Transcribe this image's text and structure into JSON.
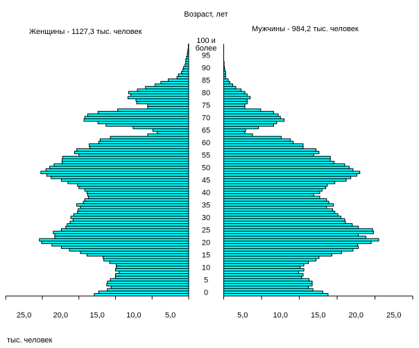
{
  "chart_data": {
    "type": "bar",
    "subtype": "population-pyramid",
    "title": "Возраст, лет",
    "unit_label": "тыс. человек",
    "bar_color": "#00FFFF",
    "left_series": {
      "name": "Женщины",
      "label": "Женщины - 1127,3 тыс. человек",
      "values": [
        12.9,
        12.3,
        11.1,
        10.6,
        11.2,
        11.1,
        10.7,
        10.0,
        10.0,
        9.5,
        10.0,
        9.9,
        9.9,
        10.8,
        11.6,
        11.7,
        13.9,
        14.8,
        16.3,
        17.4,
        18.7,
        20.1,
        20.4,
        18.3,
        18.3,
        18.5,
        17.4,
        16.8,
        16.6,
        16.2,
        15.8,
        16.1,
        15.7,
        15.2,
        15.1,
        14.8,
        15.3,
        14.4,
        14.2,
        13.7,
        13.8,
        13.9,
        14.2,
        15.0,
        15.2,
        16.5,
        17.4,
        18.8,
        19.4,
        20.2,
        19.5,
        19.0,
        18.4,
        17.3,
        17.3,
        17.2,
        15.0,
        15.6,
        15.3,
        13.5,
        13.6,
        12.3,
        12.1,
        10.7,
        5.6,
        4.3,
        4.9,
        7.6,
        11.3,
        12.4,
        14.3,
        14.2,
        13.8,
        12.4,
        9.7,
        5.6,
        5.6,
        7.1,
        7.2,
        8.3,
        7.9,
        8.2,
        7.0,
        5.9,
        4.6,
        3.8,
        2.8,
        1.6,
        1.4,
        1.0,
        0.8,
        0.7,
        0.5,
        0.4,
        0.4,
        0.3,
        0.2,
        0.15,
        0.1,
        0.05,
        0.05
      ]
    },
    "right_series": {
      "name": "Мужчины",
      "label": "Мужчины - 984,2 тыс. человек",
      "values": [
        13.8,
        13.1,
        11.8,
        11.2,
        11.7,
        11.7,
        11.3,
        10.3,
        10.5,
        9.9,
        10.6,
        10.1,
        10.6,
        11.2,
        12.2,
        12.6,
        14.3,
        15.6,
        17.1,
        17.8,
        17.7,
        19.5,
        20.5,
        18.8,
        17.8,
        19.8,
        19.7,
        17.8,
        17.0,
        16.1,
        16.0,
        15.5,
        15.1,
        14.7,
        14.4,
        13.6,
        14.5,
        13.9,
        13.6,
        12.7,
        11.9,
        12.7,
        13.0,
        13.5,
        13.7,
        14.7,
        16.2,
        16.8,
        17.6,
        18.0,
        17.1,
        16.6,
        16.0,
        14.6,
        14.1,
        14.1,
        11.9,
        12.6,
        12.2,
        10.5,
        10.5,
        9.2,
        8.8,
        7.6,
        3.8,
        2.8,
        2.9,
        4.6,
        6.6,
        7.0,
        8.0,
        7.5,
        7.2,
        6.6,
        4.9,
        2.8,
        2.8,
        3.1,
        3.1,
        3.5,
        3.1,
        2.8,
        2.3,
        1.6,
        1.2,
        0.8,
        0.6,
        0.25,
        0.25,
        0.25,
        0.15,
        0.1,
        0.05,
        0.05,
        0,
        0,
        0,
        0,
        0,
        0,
        0
      ]
    },
    "ages": {
      "min": 0,
      "max": 100
    },
    "age_labels": [
      "0",
      "5",
      "10",
      "15",
      "20",
      "25",
      "30",
      "35",
      "40",
      "45",
      "50",
      "55",
      "60",
      "65",
      "70",
      "75",
      "80",
      "85",
      "90",
      "95"
    ],
    "age_label_top": [
      "100 и",
      "более"
    ],
    "x_range": [
      0,
      25
    ],
    "x_ticks": [
      5,
      10,
      15,
      20,
      25
    ],
    "x_tick_labels": [
      "5,0",
      "10,0",
      "15,0",
      "20,0",
      "25,0"
    ],
    "grid": false
  }
}
